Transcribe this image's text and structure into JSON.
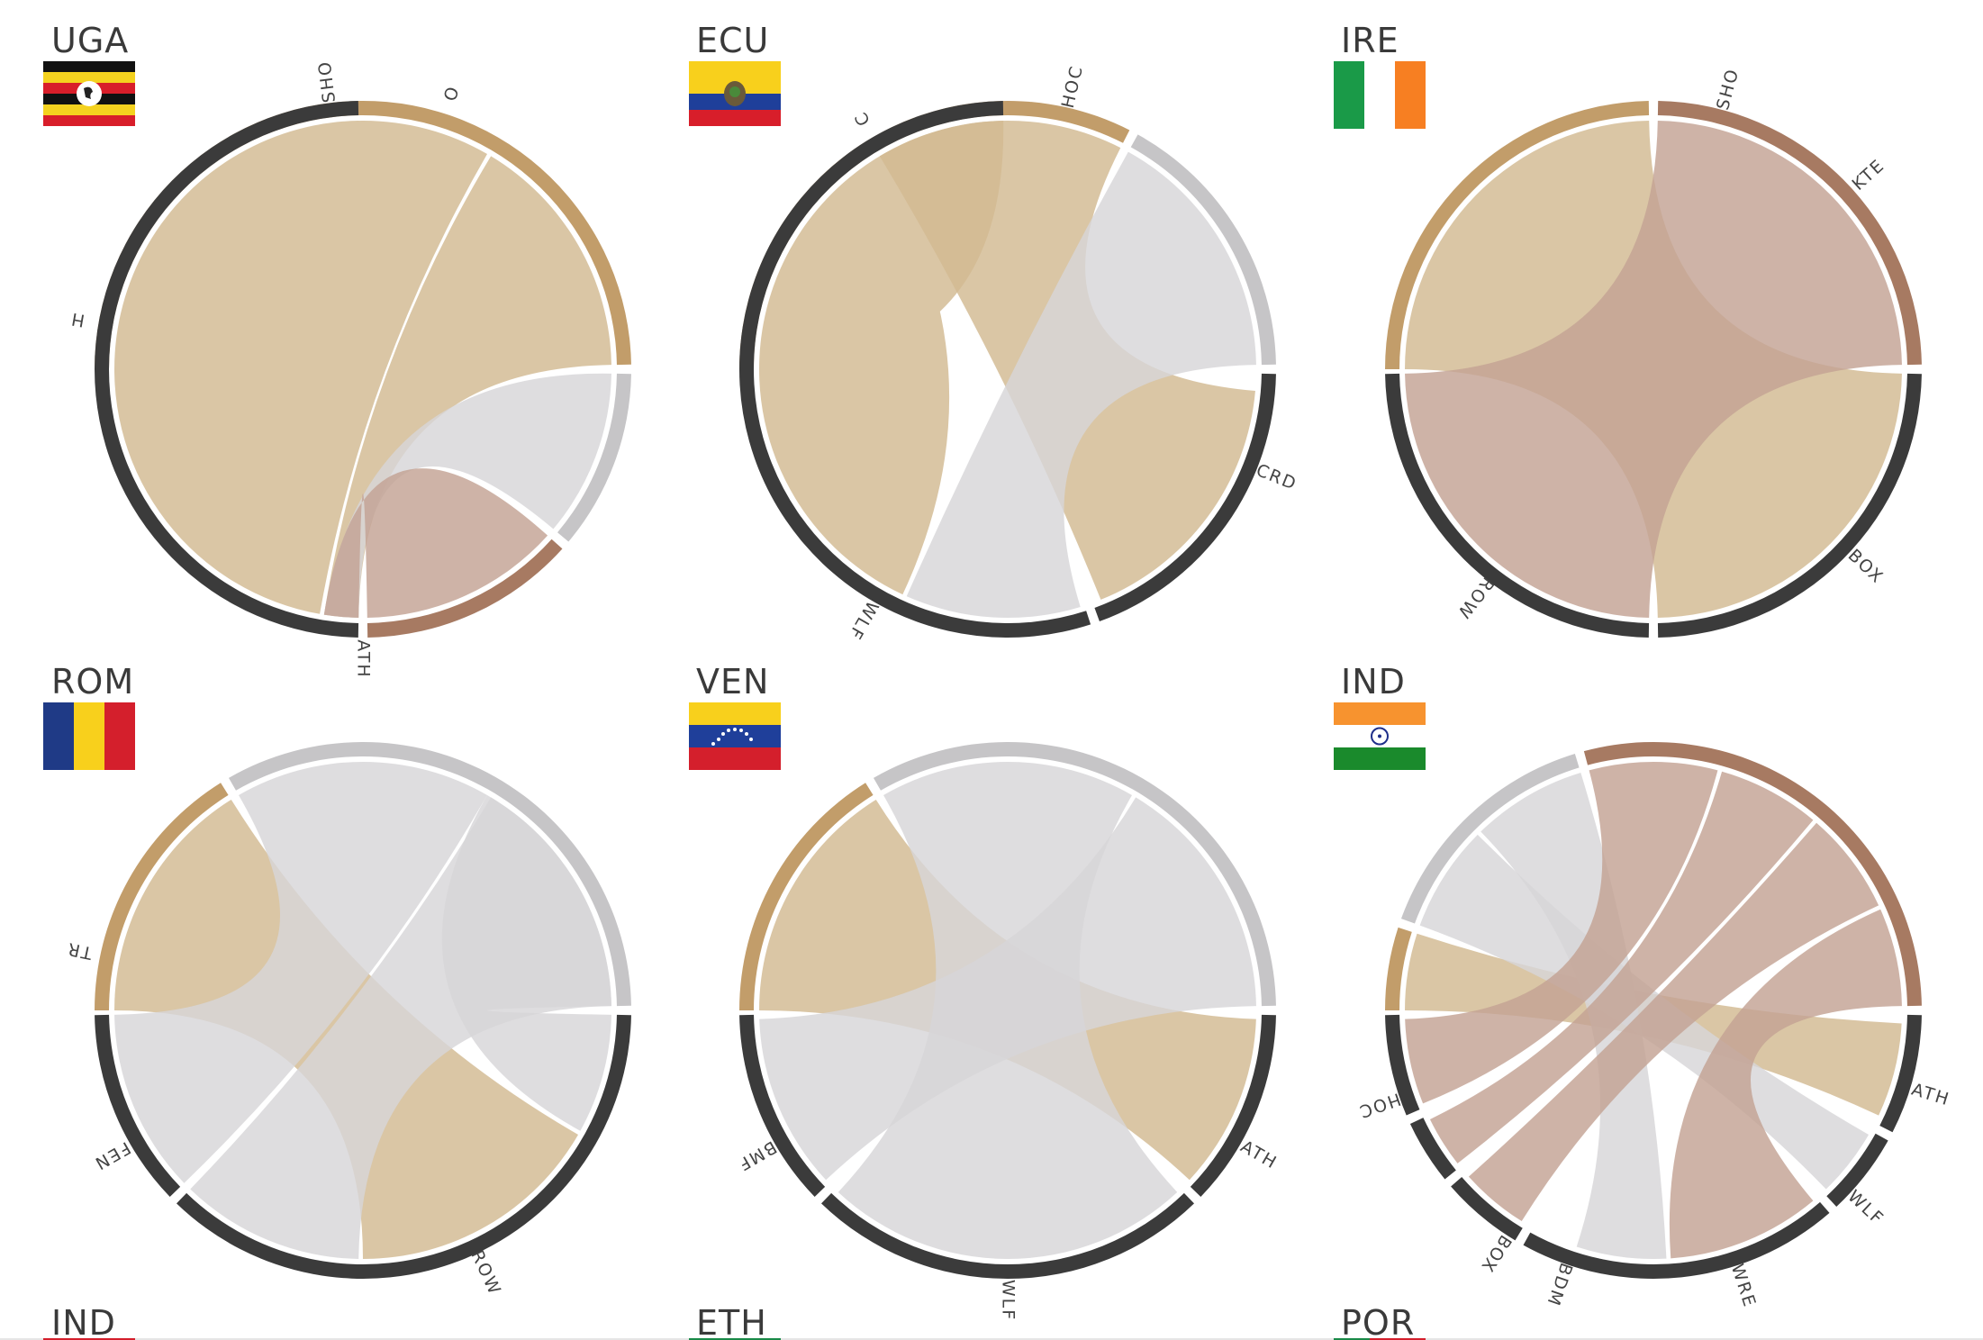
{
  "colors": {
    "tan": "#c29d6a",
    "tan_ribbon": "#d2b991",
    "grey": "#c6c5c7",
    "grey_ribbon": "#d7d6d8",
    "brown": "#a77a62",
    "brown_ribbon": "#c3a294",
    "dark": "#3b3b3b"
  },
  "panels": [
    {
      "code": "UGA",
      "flag": "uganda",
      "labels": [
        "SHO",
        "O",
        "H",
        "ATH"
      ],
      "arcs": [
        {
          "c": "tan",
          "s": 180,
          "e": 359
        },
        {
          "c": "grey",
          "s": 1,
          "e": 40
        },
        {
          "c": "brown",
          "s": 42,
          "e": 89
        },
        {
          "c": "dark",
          "s": 91,
          "e": 269
        }
      ],
      "chords": [
        {
          "c": "tan",
          "a": [
            180,
            300
          ],
          "b": [
            100,
            269
          ]
        },
        {
          "c": "tan",
          "a": [
            301,
            359
          ],
          "b": [
            91,
            99
          ]
        },
        {
          "c": "grey",
          "a": [
            1,
            40
          ],
          "b": [
            91,
            99
          ]
        },
        {
          "c": "brown",
          "a": [
            42,
            89
          ],
          "b": [
            91,
            99
          ]
        }
      ]
    },
    {
      "code": "ECU",
      "flag": "ecuador",
      "labels": [
        "C",
        "HOC",
        "CRD",
        "WLF"
      ],
      "arcs": [
        {
          "c": "tan",
          "s": 180,
          "e": 297
        },
        {
          "c": "grey",
          "s": 299,
          "e": 359
        },
        {
          "c": "dark",
          "s": 1,
          "e": 70
        },
        {
          "c": "dark",
          "s": 72,
          "e": 269
        }
      ],
      "chords": [
        {
          "c": "tan",
          "a": [
            180,
            238
          ],
          "b": [
            115,
            269
          ]
        },
        {
          "c": "tan",
          "a": [
            239,
            297
          ],
          "b": [
            5,
            68
          ]
        },
        {
          "c": "grey",
          "a": [
            299,
            359
          ],
          "b": [
            73,
            114
          ]
        }
      ]
    },
    {
      "code": "IRE",
      "flag": "ireland",
      "labels": [
        "SHO",
        "KTE",
        "ROW",
        "BOX"
      ],
      "arcs": [
        {
          "c": "tan",
          "s": 180,
          "e": 269
        },
        {
          "c": "brown",
          "s": 271,
          "e": 359
        },
        {
          "c": "dark",
          "s": 1,
          "e": 89
        },
        {
          "c": "dark",
          "s": 91,
          "e": 179
        }
      ],
      "chords": [
        {
          "c": "tan",
          "a": [
            180,
            269
          ],
          "b": [
            1,
            89
          ]
        },
        {
          "c": "brown",
          "a": [
            271,
            359
          ],
          "b": [
            91,
            179
          ]
        }
      ]
    },
    {
      "code": "ROM",
      "flag": "romania",
      "labels": [
        "TR",
        "FEN",
        "ROW"
      ],
      "arcs": [
        {
          "c": "tan",
          "s": 180,
          "e": 238
        },
        {
          "c": "grey",
          "s": 240,
          "e": 359
        },
        {
          "c": "dark",
          "s": 1,
          "e": 134
        },
        {
          "c": "dark",
          "s": 136,
          "e": 179
        }
      ],
      "chords": [
        {
          "c": "tan",
          "a": [
            180,
            238
          ],
          "b": [
            30,
            90
          ]
        },
        {
          "c": "grey",
          "a": [
            240,
            300
          ],
          "b": [
            136,
            179
          ]
        },
        {
          "c": "grey",
          "a": [
            301,
            359
          ],
          "b": [
            91,
            134
          ]
        },
        {
          "c": "grey",
          "a": [
            300,
            359
          ],
          "b": [
            1,
            29
          ]
        }
      ]
    },
    {
      "code": "VEN",
      "flag": "venezuela",
      "labels": [
        "BMF",
        "WLF",
        "ATH"
      ],
      "arcs": [
        {
          "c": "tan",
          "s": 180,
          "e": 238
        },
        {
          "c": "grey",
          "s": 240,
          "e": 359
        },
        {
          "c": "dark",
          "s": 1,
          "e": 44
        },
        {
          "c": "dark",
          "s": 46,
          "e": 134
        },
        {
          "c": "dark",
          "s": 136,
          "e": 179
        }
      ],
      "chords": [
        {
          "c": "tan",
          "a": [
            180,
            238
          ],
          "b": [
            2,
            43
          ]
        },
        {
          "c": "grey",
          "a": [
            240,
            300
          ],
          "b": [
            47,
            133
          ]
        },
        {
          "c": "grey",
          "a": [
            301,
            359
          ],
          "b": [
            137,
            178
          ]
        }
      ]
    },
    {
      "code": "IND",
      "flag": "india",
      "labels": [
        "HOC",
        "ATH",
        "WLF",
        "BOX",
        "BDM",
        "WRE"
      ],
      "arcs": [
        {
          "c": "tan",
          "s": 180,
          "e": 198
        },
        {
          "c": "grey",
          "s": 200,
          "e": 253
        },
        {
          "c": "brown",
          "s": 255,
          "e": 359
        },
        {
          "c": "dark",
          "s": 1,
          "e": 27
        },
        {
          "c": "dark",
          "s": 29,
          "e": 47
        },
        {
          "c": "dark",
          "s": 49,
          "e": 119
        },
        {
          "c": "dark",
          "s": 121,
          "e": 139
        },
        {
          "c": "dark",
          "s": 141,
          "e": 155
        },
        {
          "c": "dark",
          "s": 157,
          "e": 179
        }
      ],
      "chords": [
        {
          "c": "tan",
          "a": [
            180,
            198
          ],
          "b": [
            3,
            25
          ]
        },
        {
          "c": "grey",
          "a": [
            200,
            225
          ],
          "b": [
            30,
            46
          ]
        },
        {
          "c": "grey",
          "a": [
            226,
            253
          ],
          "b": [
            87,
            108
          ]
        },
        {
          "c": "brown",
          "a": [
            255,
            285
          ],
          "b": [
            158,
            178
          ]
        },
        {
          "c": "brown",
          "a": [
            286,
            310
          ],
          "b": [
            142,
            154
          ]
        },
        {
          "c": "brown",
          "a": [
            311,
            335
          ],
          "b": [
            122,
            138
          ]
        },
        {
          "c": "brown",
          "a": [
            336,
            359
          ],
          "b": [
            50,
            86
          ]
        }
      ]
    }
  ],
  "bottom_codes": [
    "IND",
    "ETH",
    "POR"
  ]
}
